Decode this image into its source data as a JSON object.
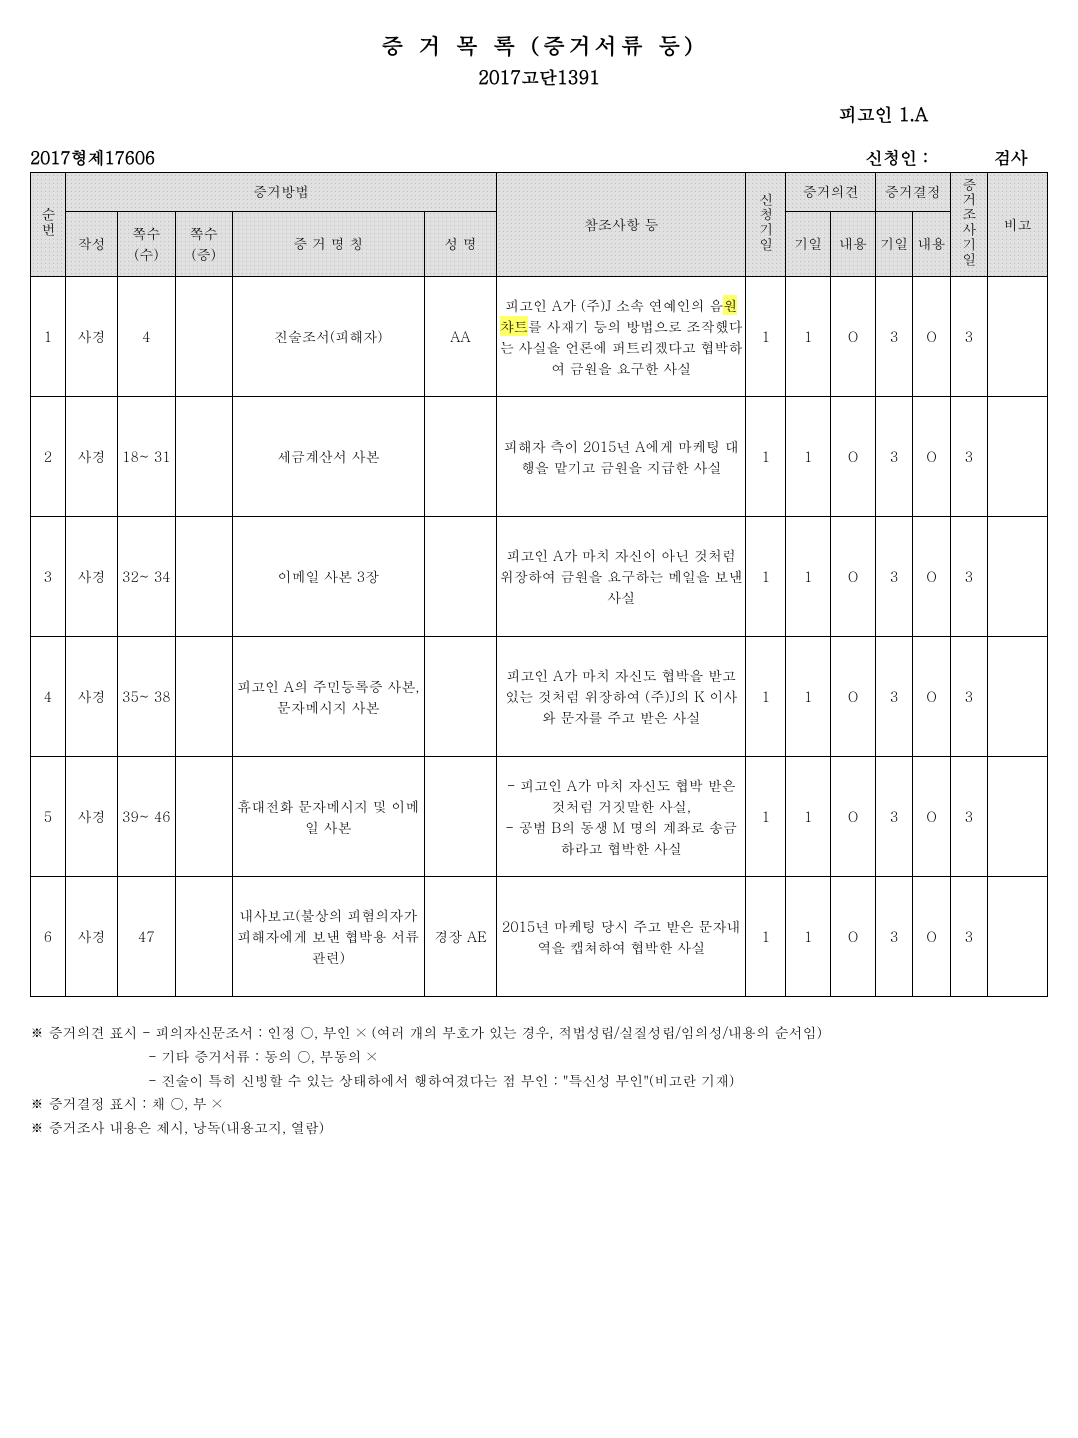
{
  "header": {
    "title": "증 거 목 록 (증거서류 등)",
    "case_no": "2017고단1391",
    "defendant": "피고인 1.A",
    "record_no": "2017형제17606",
    "applicant_label": "신청인 :",
    "applicant_value": "검사"
  },
  "columns": {
    "seq": "순번",
    "method_group": "증거방법",
    "author": "작성",
    "page_su": "쪽수(수)",
    "page_jung": "쪽수(증)",
    "evidence_name": "증 거 명 칭",
    "person": "성 명",
    "reference": "참조사항 등",
    "req_date": "신청기일",
    "opinion_group": "증거의견",
    "op_date": "기일",
    "op_content": "내용",
    "decision_group": "증거결정",
    "dec_date": "기일",
    "dec_content": "내용",
    "inv_date": "증거조사기일",
    "remark": "비고"
  },
  "rows": [
    {
      "seq": "1",
      "author": "사경",
      "page_su": "4",
      "page_jung": "",
      "name": "진술조서(피해자)",
      "person": "AA",
      "ref_pre": "피고인 A가 (주)J 소속 연예인의 음",
      "ref_hl": "원챠트",
      "ref_post": "를 사재기 등의 방법으로 조작했다는 사실을 언론에 퍼트리겠다고 협박하여 금원을 요구한 사실",
      "req": "1",
      "op_d": "1",
      "op_c": "O",
      "dec_d": "3",
      "dec_c": "O",
      "inv": "3",
      "remark": ""
    },
    {
      "seq": "2",
      "author": "사경",
      "page_su": "18~ 31",
      "page_jung": "",
      "name": "세금계산서 사본",
      "person": "",
      "ref": "피해자 측이 2015년 A에게 마케팅 대행을 맡기고 금원을 지급한 사실",
      "req": "1",
      "op_d": "1",
      "op_c": "O",
      "dec_d": "3",
      "dec_c": "O",
      "inv": "3",
      "remark": ""
    },
    {
      "seq": "3",
      "author": "사경",
      "page_su": "32~ 34",
      "page_jung": "",
      "name": "이메일 사본 3장",
      "person": "",
      "ref": "피고인 A가 마치 자신이 아닌 것처럼 위장하여 금원을 요구하는 메일을 보낸 사실",
      "req": "1",
      "op_d": "1",
      "op_c": "O",
      "dec_d": "3",
      "dec_c": "O",
      "inv": "3",
      "remark": ""
    },
    {
      "seq": "4",
      "author": "사경",
      "page_su": "35~ 38",
      "page_jung": "",
      "name": "피고인 A의 주민등록증 사본, 문자메시지 사본",
      "person": "",
      "ref": "피고인 A가 마치 자신도 협박을 받고 있는 것처럼 위장하여 (주)J의 K 이사와 문자를 주고 받은 사실",
      "req": "1",
      "op_d": "1",
      "op_c": "O",
      "dec_d": "3",
      "dec_c": "O",
      "inv": "3",
      "remark": ""
    },
    {
      "seq": "5",
      "author": "사경",
      "page_su": "39~ 46",
      "page_jung": "",
      "name": "휴대전화 문자메시지 및 이메일 사본",
      "person": "",
      "ref": "- 피고인 A가 마치 자신도 협박 받은 것처럼 거짓말한 사실,\n- 공범 B의 동생 M 명의 계좌로 송금하라고 협박한 사실",
      "req": "1",
      "op_d": "1",
      "op_c": "O",
      "dec_d": "3",
      "dec_c": "O",
      "inv": "3",
      "remark": ""
    },
    {
      "seq": "6",
      "author": "사경",
      "page_su": "47",
      "page_jung": "",
      "name": "내사보고(불상의 피혐의자가 피해자에게 보낸 협박용 서류 관련)",
      "person": "경장 AE",
      "ref": "2015년 마케팅 당시 주고 받은 문자내역을 캡쳐하여 협박한 사실",
      "req": "1",
      "op_d": "1",
      "op_c": "O",
      "dec_d": "3",
      "dec_c": "O",
      "inv": "3",
      "remark": ""
    }
  ],
  "footnotes": {
    "l1": "※ 증거의견 표시 - 피의자신문조서 : 인정 ○, 부인 × (여러 개의 부호가 있는 경우, 적법성립/실질성립/임의성/내용의 순서임)",
    "l2": "- 기타 증거서류 : 동의 ○, 부동의 ×",
    "l3": "- 진술이 특히 신빙할 수 있는 상태하에서 행하여졌다는 점 부인 : \"특신성 부인\"(비고란 기재)",
    "l4": "※ 증거결정 표시 : 채 ○, 부 ×",
    "l5": "※ 증거조사 내용은 제시, 낭독(내용고지, 열람)"
  }
}
